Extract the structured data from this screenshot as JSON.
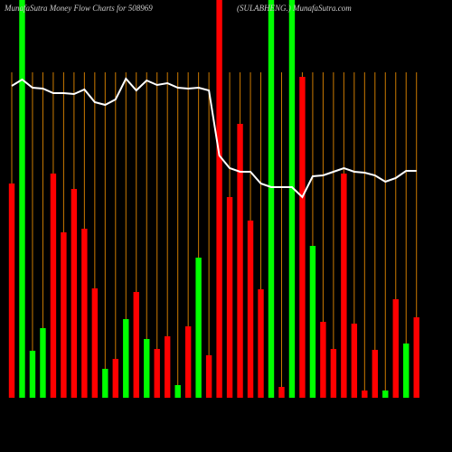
{
  "chart_data": {
    "type": "bar",
    "title": "MunafaSutra  Money Flow  Charts for 508969",
    "subtitle": "(SULABHENG.) MunafaSutra.com",
    "categories": [
      null,
      null,
      null,
      null,
      null,
      null,
      null,
      null,
      null,
      null,
      null,
      null,
      null,
      null,
      null,
      null,
      null,
      null,
      null,
      null,
      null,
      null,
      null,
      null,
      null,
      null,
      null,
      null,
      null,
      null,
      null,
      null,
      null,
      null,
      null,
      null,
      null,
      null,
      null,
      null
    ],
    "values": [
      237,
      440,
      52,
      77,
      248,
      183,
      231,
      187,
      121,
      32,
      43,
      87,
      117,
      65,
      54,
      68,
      14,
      79,
      155,
      47,
      440,
      222,
      303,
      196,
      120,
      440,
      12,
      440,
      355,
      168,
      84,
      54,
      248,
      82,
      8,
      53,
      8,
      109,
      60,
      89
    ],
    "colors": [
      "#ff0000",
      "#00ff00",
      "#00ff00",
      "#00ff00",
      "#ff0000",
      "#ff0000",
      "#ff0000",
      "#ff0000",
      "#ff0000",
      "#00ff00",
      "#ff0000",
      "#00ff00",
      "#ff0000",
      "#00ff00",
      "#ff0000",
      "#ff0000",
      "#00ff00",
      "#ff0000",
      "#00ff00",
      "#ff0000",
      "#ff0000",
      "#ff0000",
      "#ff0000",
      "#ff0000",
      "#ff0000",
      "#00ff00",
      "#ff0000",
      "#00ff00",
      "#ff0000",
      "#00ff00",
      "#ff0000",
      "#ff0000",
      "#ff0000",
      "#ff0000",
      "#ff0000",
      "#ff0000",
      "#00ff00",
      "#ff0000",
      "#00ff00",
      "#ff0000"
    ],
    "line_values": [
      345,
      352,
      343,
      342,
      337,
      337,
      336,
      341,
      327,
      324,
      330,
      353,
      340,
      351,
      346,
      348,
      343,
      342,
      343,
      340,
      268,
      254,
      250,
      250,
      237,
      233,
      233,
      233,
      222,
      245,
      246,
      250,
      254,
      250,
      249,
      246,
      239,
      243,
      251,
      251
    ],
    "line_color": "#ffffff",
    "grid_color": "#cc7a00",
    "ylim": [
      0,
      440
    ]
  }
}
